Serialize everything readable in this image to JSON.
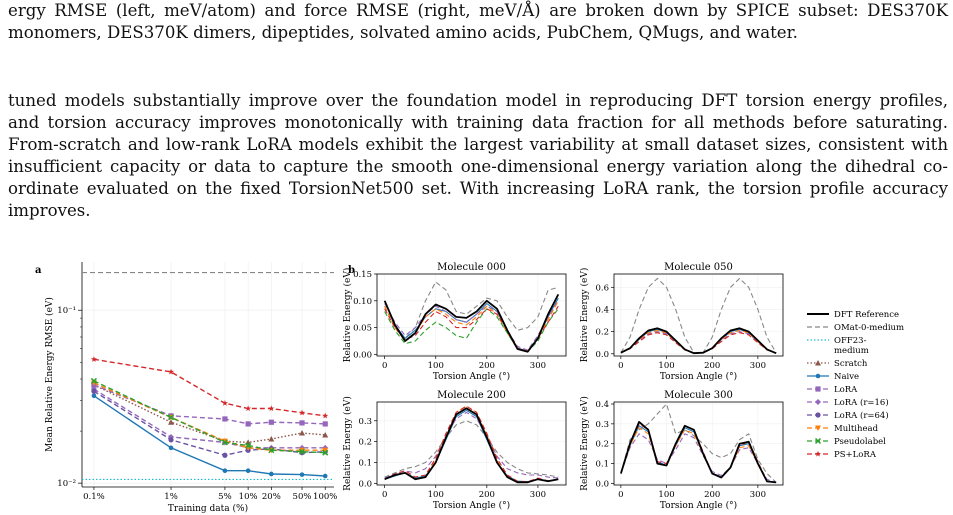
{
  "text": {
    "p1": [
      "ergy RMSE (left, meV/atom) and force RMSE (right, meV/Å) are broken down by SPICE subset: DES370K",
      "monomers, DES370K dimers, dipeptides, solvated amino acids, PubChem, QMugs, and water."
    ],
    "p2": [
      "tuned models substantially improve over the foundation model in reproducing DFT torsion energy profiles,",
      "and torsion accuracy improves monotonically with training data fraction for all methods before saturating.",
      "From-scratch and low-rank LoRA models exhibit the largest variability at small dataset sizes, consistent with",
      "insufficient capacity or data to capture the smooth one-dimensional energy variation along the dihedral co-",
      "ordinate evaluated on the fixed TorsionNet500 set. With increasing LoRA rank, the torsion profile accuracy",
      "improves."
    ]
  },
  "figure": {
    "panel_a_letter": "a",
    "panel_b_letter": "b",
    "legend": [
      {
        "label": "DFT Reference",
        "color": "#000000",
        "dash": "",
        "marker": "none",
        "width": 2
      },
      {
        "label": "OMat-0-medium",
        "color": "#888888",
        "dash": "5,3",
        "marker": "none",
        "width": 1.2
      },
      {
        "label": "OFF23-",
        "label2": "medium",
        "color": "#17becf",
        "dash": "1.5,2",
        "marker": "none",
        "width": 1.2
      },
      {
        "label": "Scratch",
        "color": "#8c564b",
        "dash": "1.5,2",
        "marker": "triangle",
        "width": 1.2
      },
      {
        "label": "Naive",
        "color": "#1f77b4",
        "dash": "",
        "marker": "circle",
        "width": 1.2
      },
      {
        "label": "LoRA",
        "color": "#9467bd",
        "dash": "5,3",
        "marker": "square",
        "width": 1.2
      },
      {
        "label": "LoRA (r=16)",
        "color": "#9467bd",
        "dash": "5,3",
        "marker": "diamond",
        "width": 1.2
      },
      {
        "label": "LoRA (r=64)",
        "color": "#6a51a3",
        "dash": "5,3",
        "marker": "pentagon",
        "width": 1.2
      },
      {
        "label": "Multihead",
        "color": "#ff7f0e",
        "dash": "5,3",
        "marker": "tri-down",
        "width": 1.2
      },
      {
        "label": "Pseudolabel",
        "color": "#2ca02c",
        "dash": "5,3",
        "marker": "x",
        "width": 1.2
      },
      {
        "label": "PS+LoRA",
        "color": "#d62728",
        "dash": "5,3",
        "marker": "star",
        "width": 1.2
      }
    ]
  },
  "chart_data": [
    {
      "type": "line",
      "panel": "a",
      "ylabel": "Mean Relative Energy RMSE (eV)",
      "xlabel": "Training data (%)",
      "x_ticks": [
        "0.1%",
        "1%",
        "5%",
        "10%",
        "20%",
        "50%",
        "100%"
      ],
      "x_values": [
        0.1,
        1,
        5,
        10,
        20,
        50,
        100
      ],
      "x_scale": "log",
      "y_scale": "log",
      "ylim": [
        0.0095,
        0.19
      ],
      "y_tick_labels": [
        "10⁻²",
        "10⁻¹"
      ],
      "y_ticks": [
        0.01,
        0.1
      ],
      "hlines": [
        {
          "name": "OMat-0-medium",
          "y": 0.165
        },
        {
          "name": "OFF23-medium",
          "y": 0.0105
        }
      ],
      "series": [
        {
          "name": "Scratch",
          "values": [
            0.037,
            0.0225,
            0.0175,
            0.0172,
            0.018,
            0.0195,
            0.019
          ]
        },
        {
          "name": "Naive",
          "values": [
            0.032,
            0.016,
            0.0118,
            0.0118,
            0.0113,
            0.0112,
            0.011
          ]
        },
        {
          "name": "LoRA",
          "values": [
            0.037,
            0.0245,
            0.0235,
            0.022,
            0.0225,
            0.0223,
            0.022
          ]
        },
        {
          "name": "LoRA (r=16)",
          "values": [
            0.035,
            0.0185,
            0.0172,
            0.016,
            0.016,
            0.016,
            0.016
          ]
        },
        {
          "name": "LoRA (r=64)",
          "values": [
            0.034,
            0.0178,
            0.0145,
            0.0155,
            0.0158,
            0.015,
            0.0152
          ]
        },
        {
          "name": "Multihead",
          "values": [
            0.038,
            0.024,
            0.0175,
            0.016,
            0.0155,
            0.0155,
            0.0155
          ]
        },
        {
          "name": "Pseudolabel",
          "values": [
            0.039,
            0.024,
            0.0172,
            0.0165,
            0.0155,
            0.0152,
            0.015
          ]
        },
        {
          "name": "PS+LoRA",
          "values": [
            0.052,
            0.044,
            0.029,
            0.027,
            0.027,
            0.0255,
            0.0245
          ]
        }
      ]
    },
    {
      "type": "line",
      "panel": "b",
      "title": "Molecule 000",
      "xlabel": "Torsion Angle (°)",
      "ylabel": "Relative Energy (eV)",
      "x": [
        0,
        20,
        40,
        60,
        80,
        100,
        120,
        140,
        160,
        180,
        200,
        220,
        240,
        260,
        280,
        300,
        320,
        340
      ],
      "xlim": [
        -15,
        355
      ],
      "ylim": [
        -0.003,
        0.15
      ],
      "x_ticks": [
        0,
        100,
        200,
        300
      ],
      "y_ticks": [
        0.0,
        0.05,
        0.1,
        0.15
      ],
      "y_tick_labels": [
        "0.00",
        "0.05",
        "0.10",
        "0.15"
      ],
      "series": [
        {
          "name": "DFT Reference",
          "values": [
            0.1,
            0.055,
            0.025,
            0.04,
            0.075,
            0.093,
            0.085,
            0.07,
            0.068,
            0.08,
            0.1,
            0.085,
            0.045,
            0.01,
            0.005,
            0.03,
            0.075,
            0.112
          ]
        },
        {
          "name": "OMat-0-medium",
          "values": [
            0.09,
            0.05,
            0.03,
            0.05,
            0.1,
            0.135,
            0.12,
            0.08,
            0.075,
            0.09,
            0.105,
            0.1,
            0.07,
            0.045,
            0.05,
            0.07,
            0.12,
            0.125
          ]
        },
        {
          "name": "Naive",
          "values": [
            0.1,
            0.055,
            0.03,
            0.045,
            0.07,
            0.085,
            0.08,
            0.065,
            0.06,
            0.075,
            0.095,
            0.08,
            0.045,
            0.012,
            0.006,
            0.03,
            0.07,
            0.105
          ]
        },
        {
          "name": "LoRA",
          "values": [
            0.095,
            0.06,
            0.035,
            0.05,
            0.075,
            0.09,
            0.08,
            0.065,
            0.06,
            0.075,
            0.09,
            0.08,
            0.045,
            0.015,
            0.008,
            0.035,
            0.07,
            0.1
          ]
        },
        {
          "name": "Multihead",
          "values": [
            0.09,
            0.05,
            0.025,
            0.04,
            0.07,
            0.085,
            0.075,
            0.06,
            0.055,
            0.07,
            0.09,
            0.075,
            0.04,
            0.01,
            0.006,
            0.03,
            0.065,
            0.1
          ]
        },
        {
          "name": "Pseudolabel",
          "values": [
            0.08,
            0.045,
            0.02,
            0.025,
            0.045,
            0.06,
            0.05,
            0.035,
            0.03,
            0.06,
            0.085,
            0.07,
            0.04,
            0.01,
            0.005,
            0.025,
            0.06,
            0.085
          ]
        },
        {
          "name": "PS+LoRA",
          "values": [
            0.085,
            0.05,
            0.028,
            0.035,
            0.06,
            0.08,
            0.07,
            0.05,
            0.05,
            0.065,
            0.085,
            0.075,
            0.045,
            0.012,
            0.006,
            0.03,
            0.06,
            0.09
          ]
        }
      ]
    },
    {
      "type": "line",
      "panel": "b",
      "title": "Molecule 050",
      "xlabel": "Torsion Angle (°)",
      "ylabel": "Relative Energy (eV)",
      "x": [
        0,
        20,
        40,
        60,
        80,
        100,
        120,
        140,
        160,
        180,
        200,
        220,
        240,
        260,
        280,
        300,
        320,
        340
      ],
      "xlim": [
        -15,
        355
      ],
      "ylim": [
        -0.02,
        0.72
      ],
      "x_ticks": [
        0,
        100,
        200,
        300
      ],
      "y_ticks": [
        0.0,
        0.2,
        0.4,
        0.6
      ],
      "y_tick_labels": [
        "0.0",
        "0.2",
        "0.4",
        "0.6"
      ],
      "series": [
        {
          "name": "DFT Reference",
          "values": [
            0.01,
            0.05,
            0.14,
            0.21,
            0.23,
            0.2,
            0.12,
            0.04,
            0.005,
            0.01,
            0.05,
            0.14,
            0.21,
            0.23,
            0.2,
            0.12,
            0.04,
            0.005
          ]
        },
        {
          "name": "OMat-0-medium",
          "values": [
            0.01,
            0.15,
            0.4,
            0.6,
            0.68,
            0.6,
            0.4,
            0.15,
            0.01,
            0.01,
            0.15,
            0.4,
            0.6,
            0.68,
            0.6,
            0.4,
            0.15,
            0.01
          ]
        },
        {
          "name": "Naive",
          "values": [
            0.01,
            0.05,
            0.13,
            0.2,
            0.22,
            0.19,
            0.11,
            0.04,
            0.005,
            0.01,
            0.05,
            0.13,
            0.2,
            0.22,
            0.19,
            0.11,
            0.04,
            0.005
          ]
        },
        {
          "name": "LoRA",
          "values": [
            0.01,
            0.05,
            0.12,
            0.18,
            0.2,
            0.18,
            0.11,
            0.04,
            0.005,
            0.01,
            0.05,
            0.12,
            0.18,
            0.2,
            0.18,
            0.11,
            0.04,
            0.005
          ]
        },
        {
          "name": "Multihead",
          "values": [
            0.01,
            0.05,
            0.13,
            0.19,
            0.21,
            0.19,
            0.11,
            0.04,
            0.005,
            0.01,
            0.05,
            0.13,
            0.19,
            0.21,
            0.19,
            0.11,
            0.04,
            0.005
          ]
        },
        {
          "name": "PS+LoRA",
          "values": [
            0.01,
            0.045,
            0.11,
            0.17,
            0.19,
            0.17,
            0.1,
            0.035,
            0.005,
            0.01,
            0.045,
            0.11,
            0.17,
            0.19,
            0.17,
            0.1,
            0.035,
            0.005
          ]
        }
      ]
    },
    {
      "type": "line",
      "panel": "b",
      "title": "Molecule 200",
      "xlabel": "Torsion Angle (°)",
      "ylabel": "Relative Energy (eV)",
      "x": [
        0,
        20,
        40,
        60,
        80,
        100,
        120,
        140,
        160,
        180,
        200,
        220,
        240,
        260,
        280,
        300,
        320,
        340
      ],
      "xlim": [
        -15,
        355
      ],
      "ylim": [
        -0.008,
        0.39
      ],
      "x_ticks": [
        0,
        100,
        200,
        300
      ],
      "y_ticks": [
        0.0,
        0.1,
        0.2,
        0.3
      ],
      "y_tick_labels": [
        "0.0",
        "0.1",
        "0.2",
        "0.3"
      ],
      "series": [
        {
          "name": "DFT Reference",
          "values": [
            0.02,
            0.04,
            0.05,
            0.02,
            0.03,
            0.1,
            0.22,
            0.33,
            0.36,
            0.33,
            0.22,
            0.1,
            0.03,
            0.005,
            0.005,
            0.02,
            0.01,
            0.02
          ]
        },
        {
          "name": "OMat-0-medium",
          "values": [
            0.03,
            0.05,
            0.07,
            0.08,
            0.1,
            0.15,
            0.22,
            0.28,
            0.3,
            0.28,
            0.22,
            0.15,
            0.1,
            0.07,
            0.05,
            0.045,
            0.04,
            0.03
          ]
        },
        {
          "name": "Naive",
          "values": [
            0.02,
            0.035,
            0.05,
            0.025,
            0.035,
            0.1,
            0.21,
            0.32,
            0.35,
            0.32,
            0.21,
            0.1,
            0.035,
            0.01,
            0.008,
            0.02,
            0.012,
            0.02
          ]
        },
        {
          "name": "LoRA",
          "values": [
            0.025,
            0.045,
            0.06,
            0.05,
            0.07,
            0.13,
            0.23,
            0.31,
            0.34,
            0.31,
            0.23,
            0.13,
            0.07,
            0.05,
            0.04,
            0.04,
            0.03,
            0.025
          ]
        },
        {
          "name": "Multihead",
          "values": [
            0.02,
            0.04,
            0.05,
            0.02,
            0.03,
            0.11,
            0.23,
            0.34,
            0.37,
            0.34,
            0.23,
            0.11,
            0.03,
            0.005,
            0.005,
            0.02,
            0.01,
            0.02
          ]
        },
        {
          "name": "PS+LoRA",
          "values": [
            0.02,
            0.045,
            0.06,
            0.03,
            0.04,
            0.12,
            0.24,
            0.34,
            0.37,
            0.34,
            0.24,
            0.12,
            0.04,
            0.01,
            0.008,
            0.025,
            0.012,
            0.02
          ]
        }
      ]
    },
    {
      "type": "line",
      "panel": "b",
      "title": "Molecule 300",
      "xlabel": "Torsion Angle (°)",
      "ylabel": "Relative Energy (eV)",
      "x": [
        0,
        20,
        40,
        60,
        80,
        100,
        120,
        140,
        160,
        180,
        200,
        220,
        240,
        260,
        280,
        300,
        320,
        340
      ],
      "xlim": [
        -15,
        355
      ],
      "ylim": [
        -0.008,
        0.41
      ],
      "x_ticks": [
        0,
        100,
        200,
        300
      ],
      "y_ticks": [
        0.0,
        0.1,
        0.2,
        0.3,
        0.4
      ],
      "y_tick_labels": [
        "0.0",
        "0.1",
        "0.2",
        "0.3",
        "0.4"
      ],
      "series": [
        {
          "name": "DFT Reference",
          "values": [
            0.05,
            0.2,
            0.31,
            0.27,
            0.1,
            0.09,
            0.2,
            0.29,
            0.27,
            0.15,
            0.05,
            0.03,
            0.08,
            0.2,
            0.21,
            0.1,
            0.01,
            0.005
          ]
        },
        {
          "name": "OMat-0-medium",
          "values": [
            0.05,
            0.22,
            0.27,
            0.3,
            0.35,
            0.4,
            0.25,
            0.27,
            0.24,
            0.2,
            0.15,
            0.13,
            0.15,
            0.22,
            0.25,
            0.12,
            0.05,
            0.005
          ]
        },
        {
          "name": "Naive",
          "values": [
            0.05,
            0.19,
            0.29,
            0.26,
            0.11,
            0.09,
            0.19,
            0.28,
            0.26,
            0.15,
            0.05,
            0.03,
            0.08,
            0.19,
            0.2,
            0.1,
            0.01,
            0.005
          ]
        },
        {
          "name": "LoRA",
          "values": [
            0.05,
            0.18,
            0.25,
            0.22,
            0.12,
            0.1,
            0.17,
            0.25,
            0.23,
            0.14,
            0.06,
            0.04,
            0.08,
            0.17,
            0.18,
            0.1,
            0.02,
            0.005
          ]
        },
        {
          "name": "Multihead",
          "values": [
            0.05,
            0.19,
            0.28,
            0.25,
            0.1,
            0.09,
            0.19,
            0.27,
            0.25,
            0.15,
            0.05,
            0.03,
            0.08,
            0.18,
            0.19,
            0.1,
            0.01,
            0.005
          ]
        },
        {
          "name": "PS+LoRA",
          "values": [
            0.05,
            0.2,
            0.3,
            0.27,
            0.11,
            0.1,
            0.2,
            0.29,
            0.27,
            0.16,
            0.05,
            0.03,
            0.08,
            0.19,
            0.21,
            0.11,
            0.01,
            0.005
          ]
        }
      ]
    }
  ]
}
